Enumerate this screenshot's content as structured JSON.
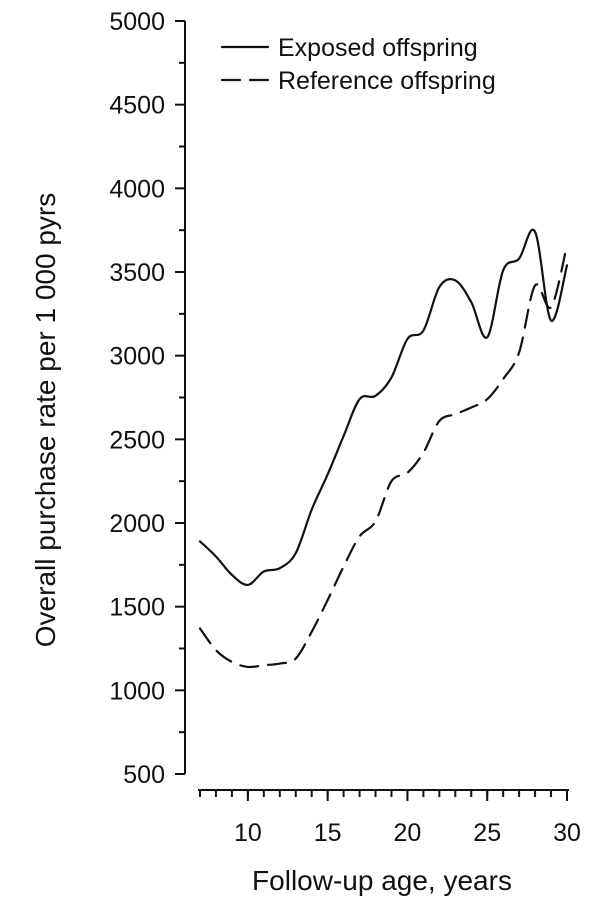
{
  "chart_data": {
    "type": "line",
    "title": "",
    "xlabel": "Follow-up age, years",
    "ylabel": "Overall purchase rate per 1 000 pyrs",
    "xlim": [
      7,
      30
    ],
    "ylim": [
      500,
      5000
    ],
    "x_ticks": [
      10,
      15,
      20,
      25,
      30
    ],
    "x_minor_ticks": [
      7,
      8,
      9,
      10,
      11,
      12,
      13,
      14,
      15,
      16,
      17,
      18,
      19,
      20,
      21,
      22,
      23,
      24,
      25,
      26,
      27,
      28,
      29,
      30
    ],
    "y_ticks": [
      500,
      1000,
      1500,
      2000,
      2500,
      3000,
      3500,
      4000,
      4500,
      5000
    ],
    "y_minor_ticks": [
      750,
      1250,
      1750,
      2250,
      2750,
      3250,
      3750,
      4250,
      4750
    ],
    "grid": false,
    "legend_position": "top-right",
    "series": [
      {
        "name": "Exposed offspring",
        "style": "solid",
        "x": [
          7,
          8,
          9,
          10,
          11,
          12,
          13,
          14,
          15,
          16,
          17,
          18,
          19,
          20,
          21,
          22,
          23,
          24,
          25,
          26,
          27,
          28,
          29,
          30
        ],
        "y": [
          1890,
          1800,
          1690,
          1630,
          1710,
          1730,
          1820,
          2080,
          2290,
          2520,
          2740,
          2760,
          2870,
          3100,
          3150,
          3410,
          3450,
          3320,
          3110,
          3510,
          3580,
          3740,
          3210,
          3540
        ]
      },
      {
        "name": "Reference offspring",
        "style": "dashed",
        "x": [
          7,
          8,
          9,
          10,
          11,
          12,
          13,
          14,
          15,
          16,
          17,
          18,
          19,
          20,
          21,
          22,
          23,
          24,
          25,
          26,
          27,
          28,
          29,
          30
        ],
        "y": [
          1370,
          1240,
          1170,
          1140,
          1150,
          1160,
          1190,
          1350,
          1540,
          1740,
          1920,
          2010,
          2250,
          2300,
          2420,
          2610,
          2650,
          2690,
          2740,
          2860,
          3020,
          3420,
          3290,
          3660
        ]
      }
    ]
  }
}
